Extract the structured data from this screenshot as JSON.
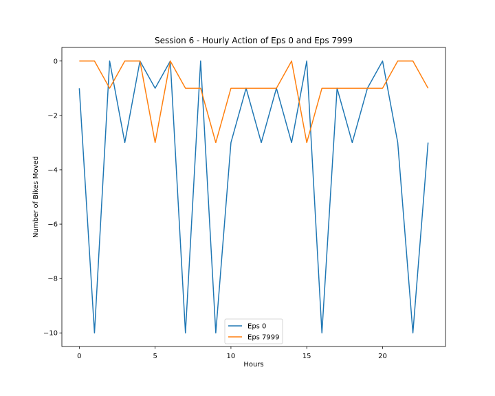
{
  "chart_data": {
    "type": "line",
    "title": "Session 6 - Hourly Action of Eps 0 and Eps 7999",
    "xlabel": "Hours",
    "ylabel": "Number of Bikes Moved",
    "x": [
      0,
      1,
      2,
      3,
      4,
      5,
      6,
      7,
      8,
      9,
      10,
      11,
      12,
      13,
      14,
      15,
      16,
      17,
      18,
      19,
      20,
      21,
      22,
      23
    ],
    "xlim": [
      -1.15,
      24.15
    ],
    "ylim": [
      -10.5,
      0.5
    ],
    "xticks": [
      0,
      5,
      10,
      15,
      20
    ],
    "xtick_labels": [
      "0",
      "5",
      "10",
      "15",
      "20"
    ],
    "yticks": [
      0,
      -2,
      -4,
      -6,
      -8,
      -10
    ],
    "ytick_labels": [
      "0",
      "−2",
      "−4",
      "−6",
      "−8",
      "−10"
    ],
    "grid": false,
    "legend_position": "bottom-center",
    "series": [
      {
        "name": "Eps 0",
        "color": "#1f77b4",
        "values": [
          -1,
          -10,
          0,
          -3,
          0,
          -1,
          0,
          -10,
          0,
          -10,
          -3,
          -1,
          -3,
          -1,
          -3,
          0,
          -10,
          -1,
          -3,
          -1,
          0,
          -3,
          -10,
          -3
        ]
      },
      {
        "name": "Eps 7999",
        "color": "#ff7f0e",
        "values": [
          0,
          0,
          -1,
          0,
          0,
          -3,
          0,
          -1,
          -1,
          -3,
          -1,
          -1,
          -1,
          -1,
          0,
          -3,
          -1,
          -1,
          -1,
          -1,
          -1,
          0,
          0,
          -1
        ]
      }
    ]
  }
}
